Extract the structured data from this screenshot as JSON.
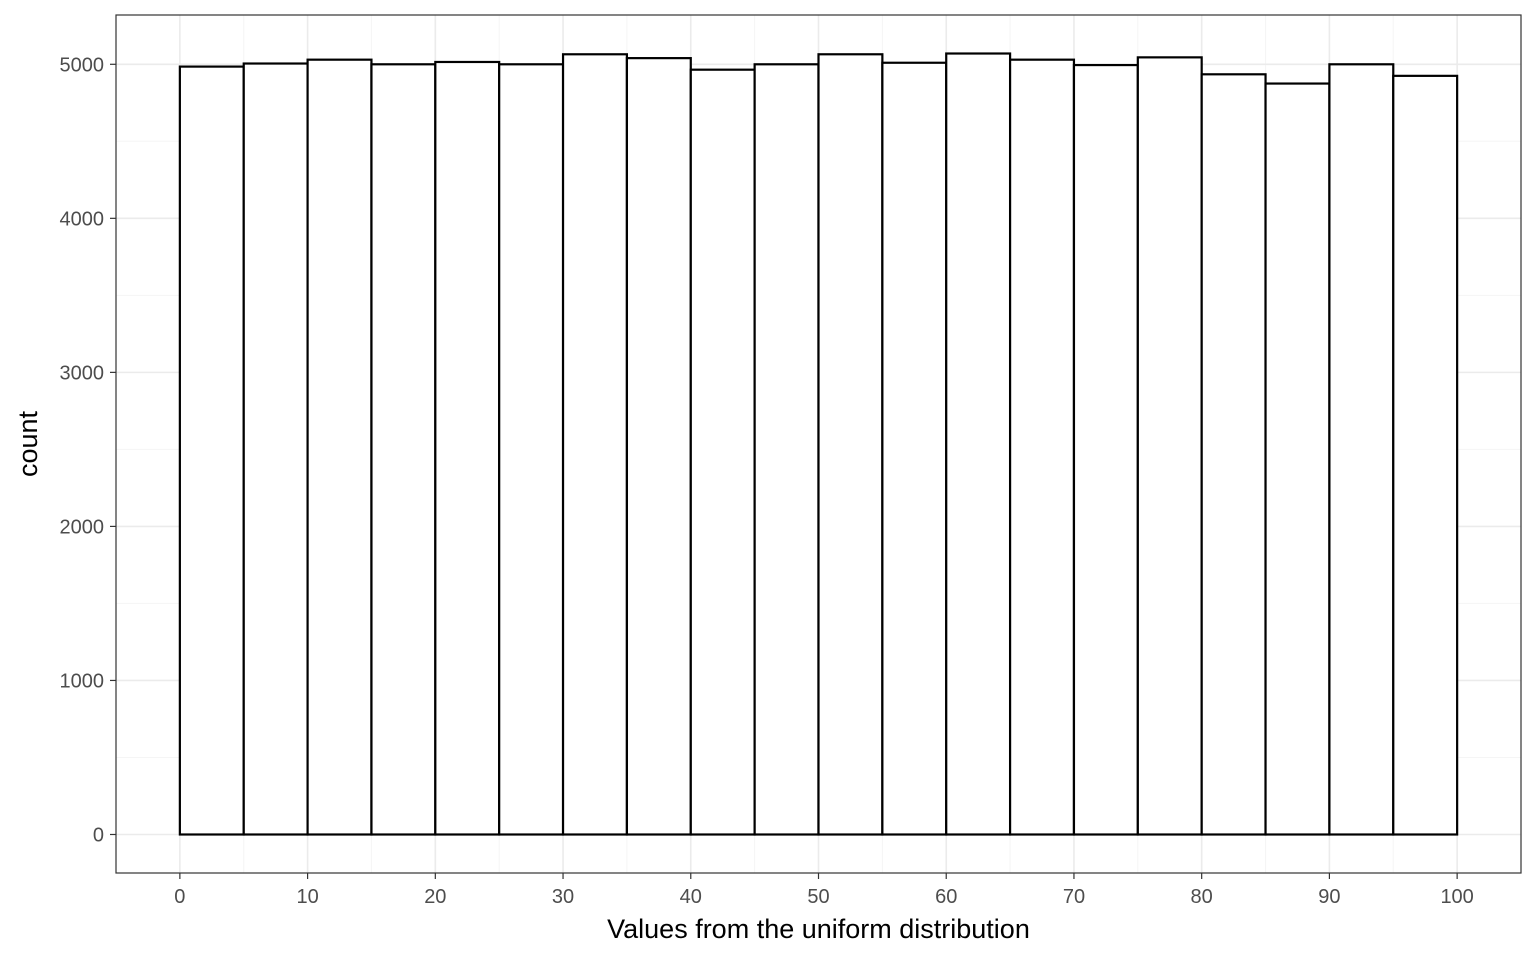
{
  "chart_data": {
    "type": "bar",
    "subtype": "histogram",
    "title": "",
    "xlabel": "Values from the uniform distribution",
    "ylabel": "count",
    "bin_width": 5,
    "bins": [
      {
        "x0": 0,
        "x1": 5,
        "count": 4985
      },
      {
        "x0": 5,
        "x1": 10,
        "count": 5005
      },
      {
        "x0": 10,
        "x1": 15,
        "count": 5030
      },
      {
        "x0": 15,
        "x1": 20,
        "count": 5000
      },
      {
        "x0": 20,
        "x1": 25,
        "count": 5015
      },
      {
        "x0": 25,
        "x1": 30,
        "count": 5000
      },
      {
        "x0": 30,
        "x1": 35,
        "count": 5065
      },
      {
        "x0": 35,
        "x1": 40,
        "count": 5040
      },
      {
        "x0": 40,
        "x1": 45,
        "count": 4965
      },
      {
        "x0": 45,
        "x1": 50,
        "count": 5000
      },
      {
        "x0": 50,
        "x1": 55,
        "count": 5065
      },
      {
        "x0": 55,
        "x1": 60,
        "count": 5010
      },
      {
        "x0": 60,
        "x1": 65,
        "count": 5070
      },
      {
        "x0": 65,
        "x1": 70,
        "count": 5030
      },
      {
        "x0": 70,
        "x1": 75,
        "count": 4995
      },
      {
        "x0": 75,
        "x1": 80,
        "count": 5045
      },
      {
        "x0": 80,
        "x1": 85,
        "count": 4935
      },
      {
        "x0": 85,
        "x1": 90,
        "count": 4875
      },
      {
        "x0": 90,
        "x1": 95,
        "count": 5000
      },
      {
        "x0": 95,
        "x1": 100,
        "count": 4925
      }
    ],
    "xlim": [
      -5,
      105
    ],
    "ylim": [
      -250,
      5320
    ],
    "x_ticks": [
      0,
      10,
      20,
      30,
      40,
      50,
      60,
      70,
      80,
      90,
      100
    ],
    "y_ticks": [
      0,
      1000,
      2000,
      3000,
      4000,
      5000
    ],
    "grid": true,
    "legend": "none",
    "colors": {
      "bar_fill": "#ffffff",
      "bar_stroke": "#000000",
      "grid_major": "#ebebeb",
      "grid_minor": "#f5f5f5",
      "panel_border": "#333333",
      "tick_text": "#4d4d4d"
    }
  }
}
